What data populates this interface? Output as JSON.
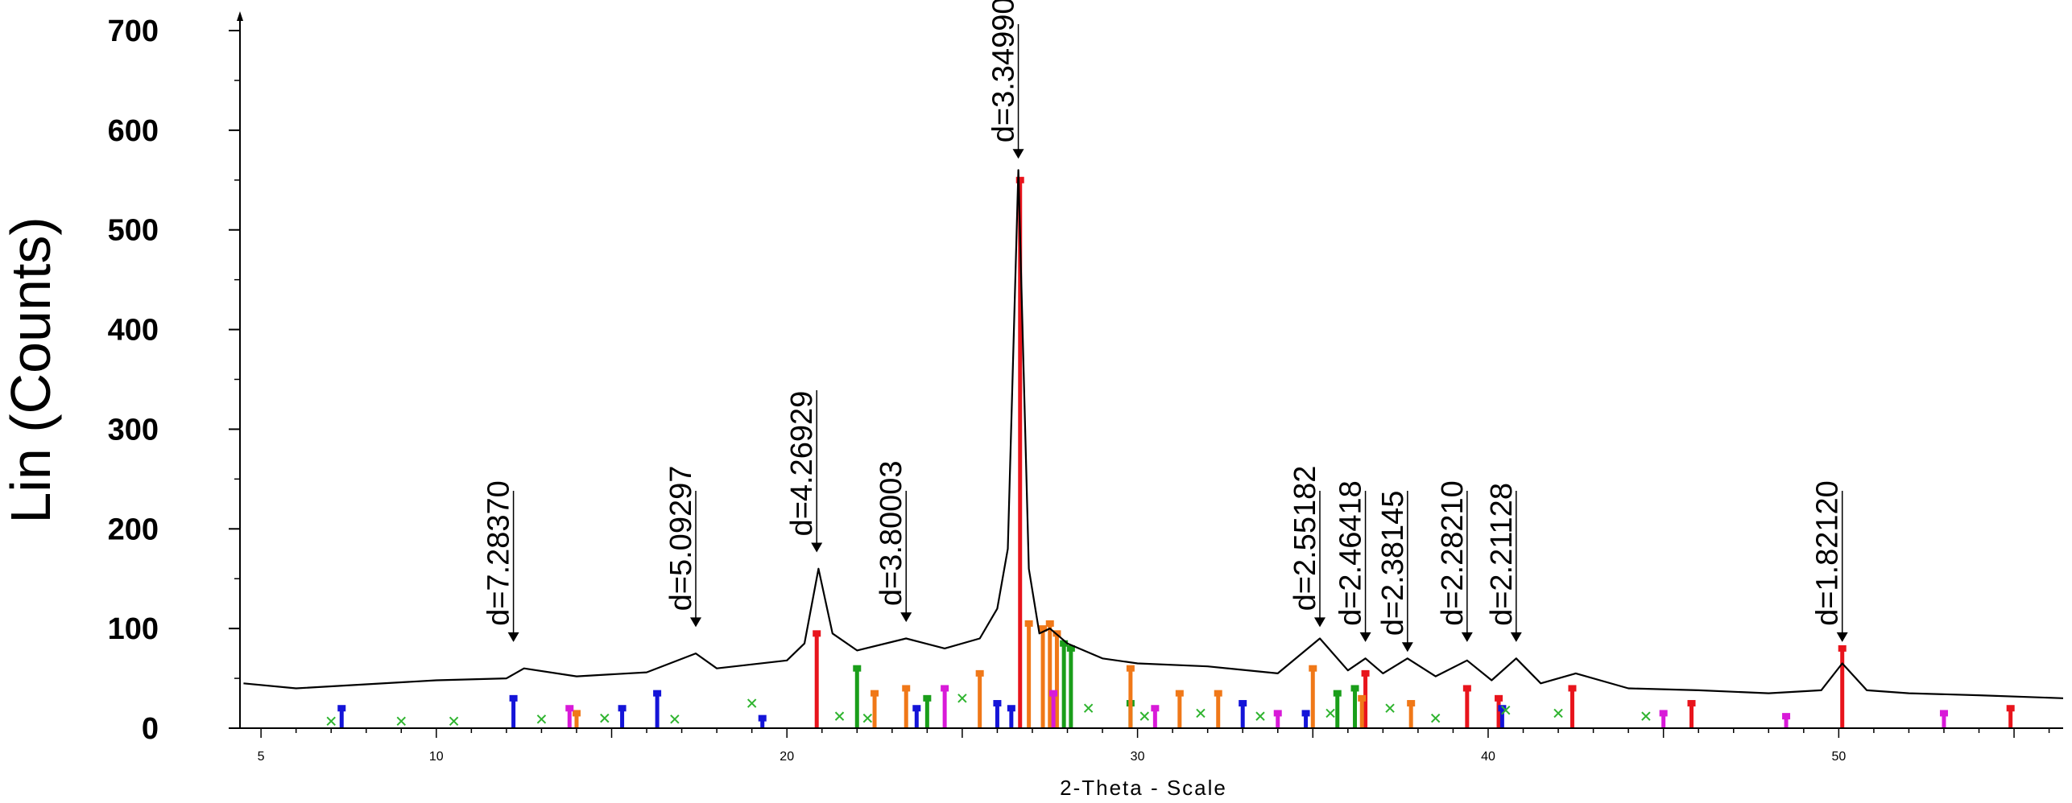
{
  "chart_data": {
    "type": "line",
    "title": "",
    "xlabel": "2-Theta - Scale",
    "ylabel": "Lin (Counts)",
    "xlim": [
      4.4,
      56.4
    ],
    "ylim": [
      0,
      700
    ],
    "y_ticks": [
      0,
      100,
      200,
      300,
      400,
      500,
      600,
      700
    ],
    "x_ticks": [
      5,
      10,
      20,
      30,
      40,
      50
    ],
    "y_tick_labels": [
      "0",
      "100",
      "200",
      "300",
      "400",
      "500",
      "600",
      "700"
    ],
    "x_tick_labels": [
      "5",
      "10",
      "20",
      "30",
      "40",
      "50"
    ],
    "grid": false,
    "series": [
      {
        "name": "",
        "color": "#000000",
        "x": [
          4.5,
          6,
          8,
          10,
          12,
          12.5,
          14,
          16,
          17.4,
          18,
          20,
          20.5,
          20.9,
          21.3,
          22,
          23.4,
          24.5,
          25.5,
          26.0,
          26.3,
          26.6,
          26.9,
          27.2,
          27.5,
          28,
          29,
          30,
          32,
          34,
          35.2,
          36.0,
          36.5,
          37.0,
          37.7,
          38.5,
          39.4,
          40.1,
          40.8,
          41.5,
          42.5,
          44,
          46,
          48,
          49.5,
          50.1,
          50.8,
          52,
          54,
          56.4
        ],
        "y": [
          45,
          40,
          44,
          48,
          50,
          60,
          52,
          56,
          75,
          60,
          68,
          85,
          160,
          95,
          78,
          90,
          80,
          90,
          120,
          180,
          560,
          160,
          95,
          100,
          85,
          70,
          65,
          62,
          55,
          90,
          58,
          70,
          55,
          70,
          52,
          68,
          48,
          70,
          45,
          55,
          40,
          38,
          35,
          38,
          65,
          38,
          35,
          33,
          30
        ]
      }
    ],
    "peak_labels": [
      {
        "x": 12.2,
        "y": 80,
        "label": "d=7.28370"
      },
      {
        "x": 17.4,
        "y": 95,
        "label": "d=5.09297"
      },
      {
        "x": 20.85,
        "y": 170,
        "label": "d=4.26929"
      },
      {
        "x": 23.4,
        "y": 100,
        "label": "d=3.80003"
      },
      {
        "x": 26.6,
        "y": 565,
        "label": "d=3.34990"
      },
      {
        "x": 35.2,
        "y": 95,
        "label": "d=2.55182"
      },
      {
        "x": 36.5,
        "y": 80,
        "label": "d=2.46418"
      },
      {
        "x": 37.7,
        "y": 70,
        "label": "d=2.38145"
      },
      {
        "x": 39.4,
        "y": 80,
        "label": "d=2.28210"
      },
      {
        "x": 40.8,
        "y": 80,
        "label": "d=2.21128"
      },
      {
        "x": 50.1,
        "y": 80,
        "label": "d=1.82120"
      }
    ],
    "reference_sticks": [
      {
        "phase": "red",
        "color": "#e8141c",
        "x": [
          20.85,
          26.65,
          36.5,
          39.4,
          40.3,
          42.4,
          45.8,
          50.1,
          54.9
        ],
        "y": [
          95,
          550,
          55,
          40,
          30,
          40,
          25,
          80,
          20
        ]
      },
      {
        "phase": "green",
        "color": "#1a9e1a",
        "x": [
          22.0,
          24.0,
          27.9,
          28.1,
          29.8,
          35.7,
          36.2
        ],
        "y": [
          60,
          30,
          85,
          80,
          25,
          35,
          40
        ]
      },
      {
        "phase": "orange",
        "color": "#f07818",
        "x": [
          14.0,
          22.5,
          23.4,
          25.5,
          26.9,
          27.3,
          27.5,
          27.7,
          29.8,
          31.2,
          32.3,
          35.0,
          36.4,
          37.8
        ],
        "y": [
          15,
          35,
          40,
          55,
          105,
          100,
          105,
          95,
          60,
          35,
          35,
          60,
          30,
          25
        ]
      },
      {
        "phase": "blue",
        "color": "#1414d8",
        "x": [
          7.3,
          12.2,
          15.3,
          16.3,
          19.3,
          23.7,
          26.0,
          26.4,
          33.0,
          34.8,
          40.4
        ],
        "y": [
          20,
          30,
          20,
          35,
          10,
          20,
          25,
          20,
          25,
          15,
          20
        ]
      },
      {
        "phase": "magenta",
        "color": "#d81ad8",
        "x": [
          13.8,
          24.5,
          27.6,
          30.5,
          34.0,
          45.0,
          48.5,
          53.0
        ],
        "y": [
          20,
          40,
          35,
          20,
          15,
          15,
          12,
          15
        ]
      },
      {
        "phase": "xgreen",
        "color": "#2fb42f",
        "x": [
          7.0,
          9.0,
          10.5,
          13.0,
          14.8,
          16.8,
          19.0,
          21.5,
          22.3,
          25.0,
          28.6,
          30.2,
          31.8,
          33.5,
          35.5,
          37.2,
          38.5,
          40.5,
          42.0,
          44.5
        ],
        "y": [
          7,
          7,
          7,
          9,
          10,
          9,
          25,
          12,
          10,
          30,
          20,
          12,
          15,
          12,
          15,
          20,
          10,
          18,
          15,
          12
        ]
      }
    ]
  }
}
